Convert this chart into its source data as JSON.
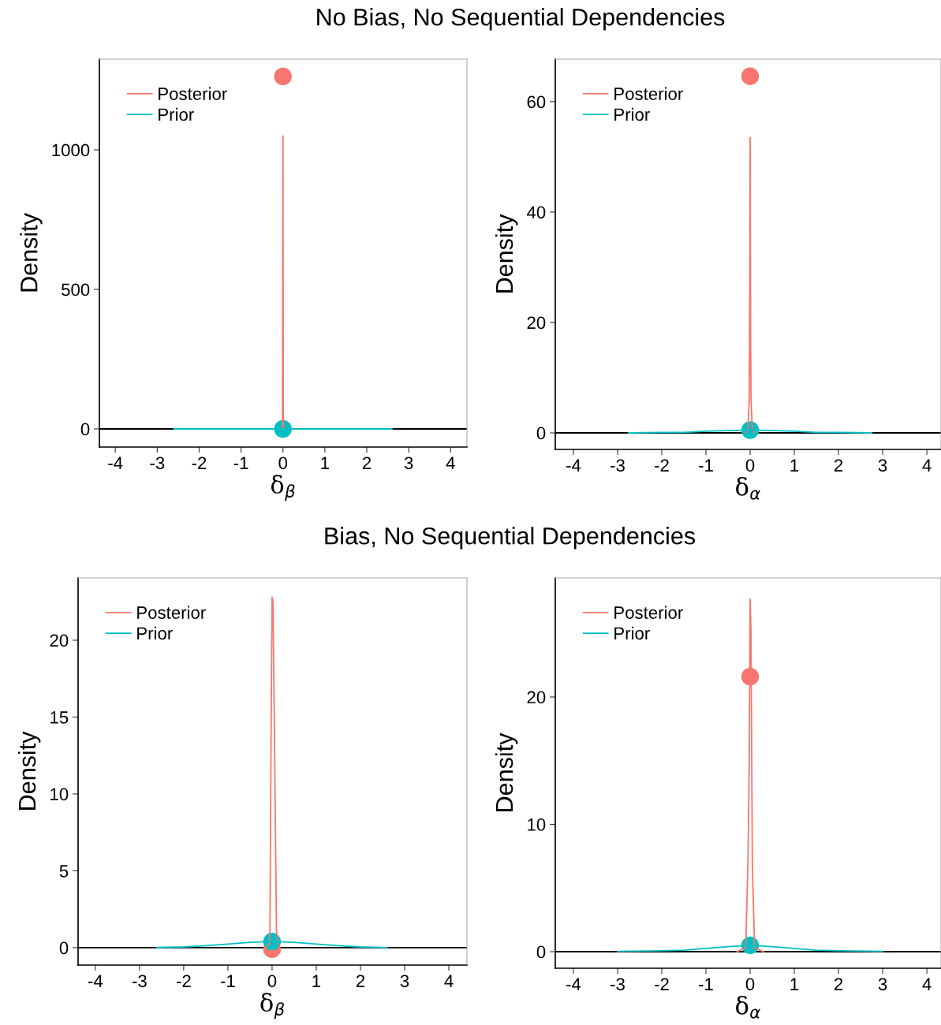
{
  "chart_data": [
    {
      "type": "line",
      "title": "No Bias, No Sequential Dependencies",
      "xlabel": "δ$_{β}$",
      "ylabel": "Density",
      "xlim": [
        -4.38,
        4.39
      ],
      "xticks": [
        -4,
        -3,
        -2,
        -1,
        0,
        1,
        2,
        3,
        4
      ],
      "ylim": [
        -65,
        1325
      ],
      "yticks": [
        0,
        500,
        1000
      ],
      "legend": "top left",
      "ref_lines": [
        {
          "axis": "y",
          "value": 0,
          "color": "#000000"
        }
      ],
      "series": [
        {
          "name": "Posterior",
          "type": "line",
          "color": "#f8766d",
          "x": [
            -0.01,
            0,
            0.01
          ],
          "values": [
            0,
            1050,
            0
          ]
        },
        {
          "name": "Prior",
          "type": "line",
          "color": "#00bfc4",
          "x": [
            -2.6,
            2.6
          ],
          "values": [
            0,
            0
          ]
        },
        {
          "type": "scatter",
          "marker": "circle",
          "color": "#f8766d",
          "x": [
            0
          ],
          "values": [
            1263
          ]
        },
        {
          "type": "scatter",
          "marker": "circle",
          "color": "#00bfc4",
          "x": [
            0
          ],
          "values": [
            0
          ]
        }
      ]
    },
    {
      "type": "line",
      "xlabel": "δ$_{α}$",
      "ylabel": "Density",
      "xlim": [
        -4.41,
        4.32
      ],
      "xticks": [
        -4,
        -3,
        -2,
        -1,
        0,
        1,
        2,
        3,
        4
      ],
      "ylim": [
        -3,
        67.7
      ],
      "yticks": [
        0,
        20,
        40,
        60
      ],
      "legend": "top left",
      "ref_lines": [
        {
          "axis": "y",
          "value": 0,
          "color": "#000000"
        }
      ],
      "series": [
        {
          "name": "Posterior",
          "type": "line",
          "color": "#f8766d",
          "x": [
            -0.1,
            -0.05,
            -0.02,
            -0.01,
            0,
            0.01,
            0.02,
            0.05,
            0.1
          ],
          "values": [
            0,
            0.5,
            6,
            23,
            53.5,
            19,
            6,
            0.5,
            0
          ]
        },
        {
          "name": "Prior",
          "type": "line",
          "color": "#00bfc4",
          "x": [
            -2.75,
            -2,
            -1.5,
            -1,
            -0.5,
            0,
            0.5,
            1,
            1.5,
            2,
            2.75
          ],
          "values": [
            0,
            0.1,
            0.1,
            0.3,
            0.4,
            0.5,
            0.4,
            0.3,
            0.1,
            0.1,
            0
          ]
        },
        {
          "type": "scatter",
          "marker": "circle",
          "color": "#f8766d",
          "x": [
            0
          ],
          "values": [
            64.6
          ]
        },
        {
          "type": "scatter",
          "marker": "circle",
          "color": "#00bfc4",
          "x": [
            0
          ],
          "values": [
            0.5
          ]
        }
      ]
    },
    {
      "type": "line",
      "title": "Bias, No Sequential Dependencies",
      "xlabel": "δ$_{β}$",
      "ylabel": "Density",
      "xlim": [
        -4.39,
        4.41
      ],
      "xticks": [
        -4,
        -3,
        -2,
        -1,
        0,
        1,
        2,
        3,
        4
      ],
      "ylim": [
        -1.13,
        24.05
      ],
      "yticks": [
        0,
        5,
        10,
        15,
        20
      ],
      "legend": "top left",
      "ref_lines": [
        {
          "axis": "y",
          "value": 0,
          "color": "#000000"
        }
      ],
      "series": [
        {
          "name": "Posterior",
          "type": "line",
          "color": "#f8766d",
          "x": [
            -0.15,
            -0.05,
            -0.02,
            0,
            0.02,
            0.05,
            0.1,
            0.15
          ],
          "values": [
            0,
            0.3,
            15,
            22.8,
            22.5,
            15,
            1,
            0
          ]
        },
        {
          "name": "Prior",
          "type": "line",
          "color": "#00bfc4",
          "x": [
            -2.6,
            -2,
            -1.5,
            -1,
            -0.5,
            0,
            0.5,
            1,
            1.5,
            2,
            2.6
          ],
          "values": [
            0.01,
            0.05,
            0.13,
            0.24,
            0.35,
            0.4,
            0.35,
            0.24,
            0.13,
            0.05,
            0.01
          ]
        },
        {
          "type": "scatter",
          "marker": "circle",
          "color": "#f8766d",
          "x": [
            0
          ],
          "values": [
            -0.1
          ]
        },
        {
          "type": "scatter",
          "marker": "circle",
          "color": "#00bfc4",
          "x": [
            0
          ],
          "values": [
            0.4
          ]
        }
      ]
    },
    {
      "type": "line",
      "xlabel": "δ$_{α}$",
      "ylabel": "Density",
      "xlim": [
        -4.41,
        4.32
      ],
      "xticks": [
        -4,
        -3,
        -2,
        -1,
        0,
        1,
        2,
        3,
        4
      ],
      "ylim": [
        -1.3,
        29.35
      ],
      "yticks": [
        0,
        10,
        20
      ],
      "legend": "top left",
      "ref_lines": [
        {
          "axis": "y",
          "value": 0,
          "color": "#000000"
        }
      ],
      "series": [
        {
          "name": "Posterior",
          "type": "line",
          "color": "#f8766d",
          "x": [
            -0.3,
            -0.1,
            -0.05,
            -0.02,
            0,
            0.02,
            0.05,
            0.1,
            0.3
          ],
          "values": [
            0,
            0.3,
            7,
            15,
            27.7,
            25,
            7,
            0.3,
            0
          ]
        },
        {
          "name": "Prior",
          "type": "line",
          "color": "#00bfc4",
          "x": [
            -3,
            -2,
            -1.5,
            -1,
            -0.5,
            0,
            0.5,
            1,
            1.5,
            2,
            3
          ],
          "values": [
            0.02,
            0.07,
            0.12,
            0.25,
            0.4,
            0.5,
            0.4,
            0.25,
            0.12,
            0.07,
            0.02
          ]
        },
        {
          "type": "scatter",
          "marker": "circle",
          "color": "#f8766d",
          "x": [
            0
          ],
          "values": [
            21.6
          ]
        },
        {
          "type": "scatter",
          "marker": "circle",
          "color": "#00bfc4",
          "x": [
            0
          ],
          "values": [
            0.5
          ]
        }
      ]
    }
  ]
}
